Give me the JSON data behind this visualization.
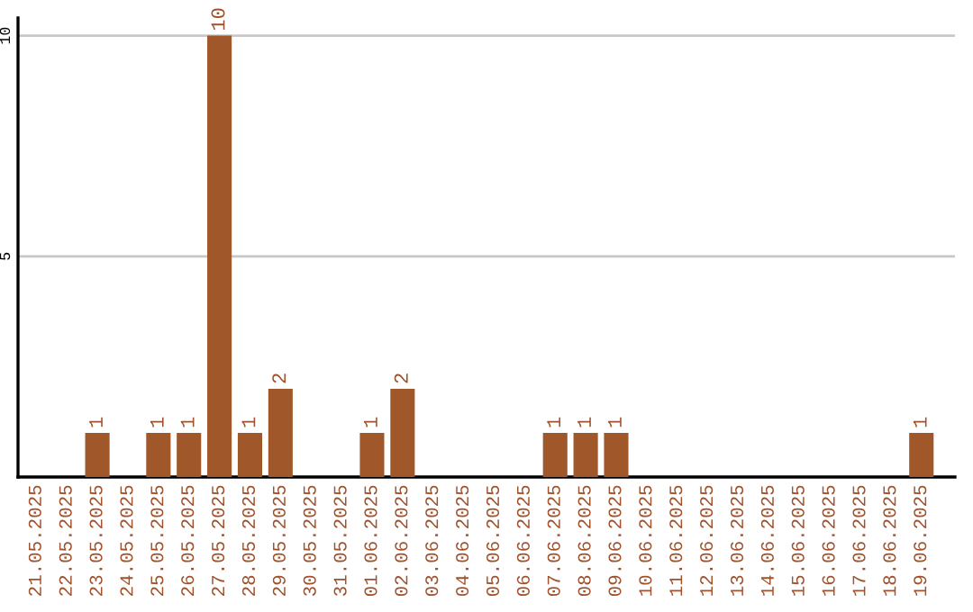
{
  "chart_data": {
    "type": "bar",
    "categories": [
      "21.05.2025",
      "22.05.2025",
      "23.05.2025",
      "24.05.2025",
      "25.05.2025",
      "26.05.2025",
      "27.05.2025",
      "28.05.2025",
      "29.05.2025",
      "30.05.2025",
      "31.05.2025",
      "01.06.2025",
      "02.06.2025",
      "03.06.2025",
      "04.06.2025",
      "05.06.2025",
      "06.06.2025",
      "07.06.2025",
      "08.06.2025",
      "09.06.2025",
      "10.06.2025",
      "11.06.2025",
      "12.06.2025",
      "13.06.2025",
      "14.06.2025",
      "15.06.2025",
      "16.06.2025",
      "17.06.2025",
      "18.06.2025",
      "19.06.2025"
    ],
    "values": [
      0,
      0,
      1,
      0,
      1,
      1,
      10,
      1,
      2,
      0,
      0,
      1,
      2,
      0,
      0,
      0,
      0,
      1,
      1,
      1,
      0,
      0,
      0,
      0,
      0,
      0,
      0,
      0,
      0,
      1
    ],
    "value_labels": [
      null,
      null,
      "1",
      null,
      "1",
      "1",
      "10",
      "1",
      "2",
      null,
      null,
      "1",
      "2",
      null,
      null,
      null,
      null,
      "1",
      "1",
      "1",
      null,
      null,
      null,
      null,
      null,
      null,
      null,
      null,
      null,
      "1"
    ],
    "color": "#a0582a",
    "ylim": [
      0,
      10.4
    ],
    "yticks": [
      5,
      10
    ],
    "grid": "y"
  }
}
